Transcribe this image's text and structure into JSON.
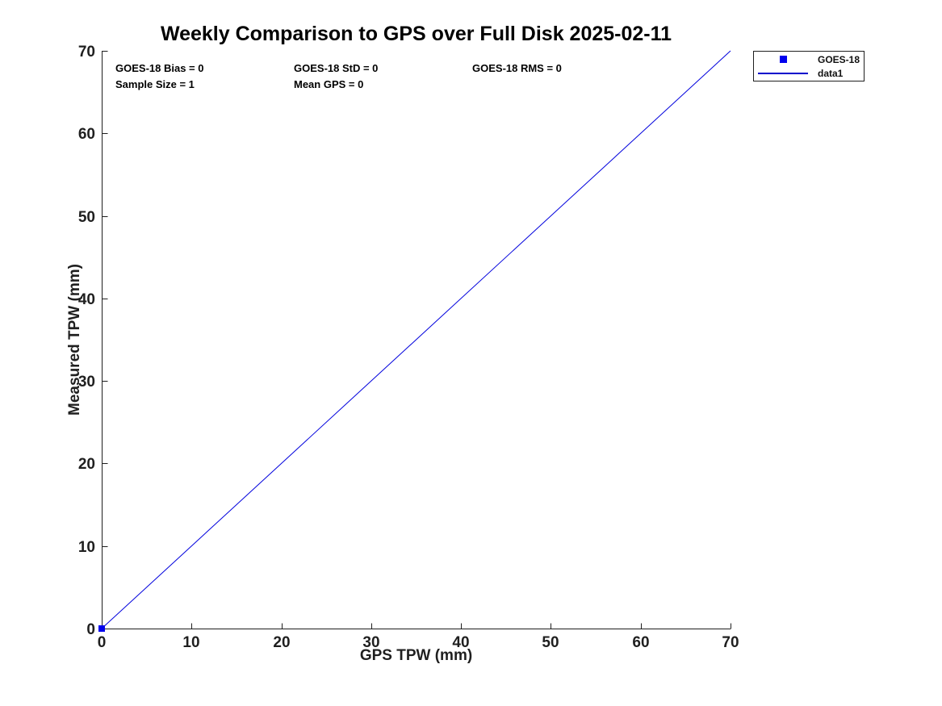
{
  "chart_data": {
    "type": "scatter",
    "title": "Weekly Comparison to GPS over Full Disk 2025-02-11",
    "xlabel": "GPS TPW (mm)",
    "ylabel": "Measured TPW (mm)",
    "xlim": [
      0,
      70
    ],
    "ylim": [
      0,
      70
    ],
    "x_ticks": [
      0,
      10,
      20,
      30,
      40,
      50,
      60,
      70
    ],
    "y_ticks": [
      0,
      10,
      20,
      30,
      40,
      50,
      60,
      70
    ],
    "grid": false,
    "legend_position": "outside-top-right",
    "series": [
      {
        "name": "GOES-18",
        "type": "scatter",
        "marker": "square",
        "color": "#0000ee",
        "points": [
          [
            0,
            0
          ]
        ]
      },
      {
        "name": "data1",
        "type": "line",
        "color": "#0000dd",
        "points": [
          [
            0,
            0
          ],
          [
            70,
            70
          ]
        ]
      }
    ],
    "annotations": [
      {
        "text": "GOES-18 Bias = 0"
      },
      {
        "text": "GOES-18 StD = 0"
      },
      {
        "text": "GOES-18 RMS = 0"
      },
      {
        "text": "Sample Size = 1"
      },
      {
        "text": "Mean GPS = 0"
      }
    ],
    "stats": {
      "bias": 0,
      "std": 0,
      "rms": 0,
      "sample_size": 1,
      "mean_gps": 0
    }
  },
  "colors": {
    "marker_blue": "#0000ee",
    "line_blue": "#0000dd",
    "axis": "#1f1f1f",
    "background": "#ffffff"
  }
}
